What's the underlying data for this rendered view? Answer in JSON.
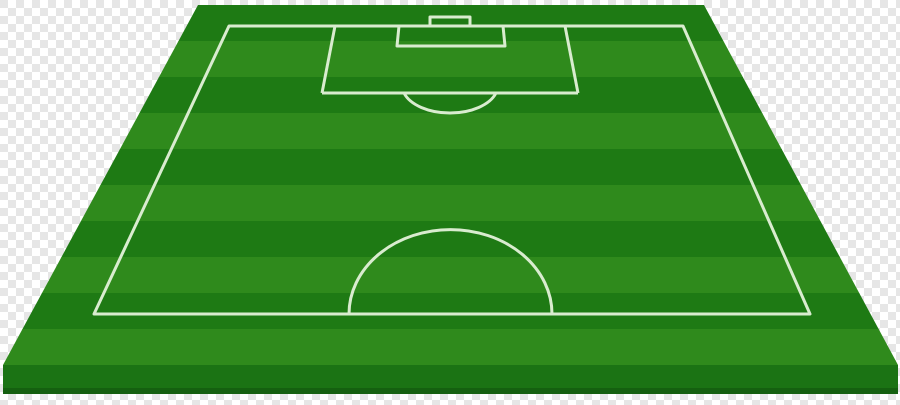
{
  "illustration": {
    "subject": "soccer-pitch-half",
    "colors": {
      "checker_light": "#ffffff",
      "checker_dark": "#e6e6e6",
      "stripe_light": "#2f8a1c",
      "stripe_dark": "#1e7a14",
      "line": "#d9eccf",
      "slab_front": "#1b7314",
      "slab_front_dark": "#156010",
      "slab_side_left": "#1a6e12",
      "slab_side_right": "#1a6e12"
    },
    "stripe_count": 10
  }
}
